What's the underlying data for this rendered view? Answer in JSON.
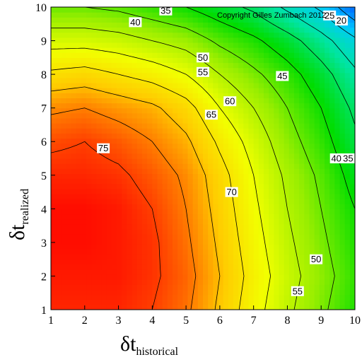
{
  "chart_data": {
    "type": "heatmap",
    "title": "",
    "xlabel": {
      "symbol": "δt",
      "subscript": "historical"
    },
    "ylabel": {
      "symbol": "δt",
      "subscript": "realized"
    },
    "xlim": [
      1,
      10
    ],
    "ylim": [
      1,
      10
    ],
    "x_ticks": [
      "1",
      "2",
      "3",
      "4",
      "5",
      "6",
      "7",
      "8",
      "9",
      "10"
    ],
    "y_ticks": [
      "1",
      "2",
      "3",
      "4",
      "5",
      "6",
      "7",
      "8",
      "9",
      "10"
    ],
    "copyright": "Copyright Gilles Zumbach 2012",
    "colormap": [
      "#ff0000",
      "#ff6600",
      "#ffcc00",
      "#f2ff00",
      "#99ee00",
      "#00dd00",
      "#00e5a0",
      "#00c8ff",
      "#0055ff"
    ],
    "value_range": [
      15,
      80
    ],
    "x": [
      1,
      2,
      3,
      4,
      5,
      6,
      7,
      8,
      9,
      10
    ],
    "y": [
      1,
      2,
      3,
      4,
      5,
      6,
      7,
      8,
      9,
      10
    ],
    "z": [
      [
        77,
        77,
        77,
        75,
        71,
        64,
        57,
        51,
        46,
        41
      ],
      [
        78,
        78,
        78,
        76,
        72,
        65,
        58,
        52,
        47,
        42
      ],
      [
        79,
        79,
        78,
        76,
        71,
        64,
        57,
        51,
        46,
        41
      ],
      [
        79,
        79,
        78,
        75,
        70,
        63,
        56,
        50,
        45,
        40
      ],
      [
        77,
        77,
        76,
        73,
        69,
        62,
        55,
        49,
        44,
        38
      ],
      [
        74,
        75,
        73,
        70,
        66,
        59,
        53,
        47,
        42,
        36
      ],
      [
        69,
        70,
        68,
        66,
        62,
        55,
        50,
        45,
        40,
        34
      ],
      [
        61,
        62,
        60,
        58,
        55,
        50,
        46,
        42,
        37,
        31
      ],
      [
        53,
        53,
        52,
        50,
        48,
        44,
        41,
        37,
        32,
        26
      ],
      [
        45,
        45,
        44,
        42,
        40,
        37,
        34,
        29,
        24,
        16
      ]
    ],
    "contour_levels": [
      20,
      25,
      30,
      35,
      40,
      45,
      50,
      55,
      60,
      65,
      70,
      75
    ],
    "contour_labels": [
      {
        "text": "35",
        "x": 4.4,
        "y": 9.9
      },
      {
        "text": "40",
        "x": 3.5,
        "y": 9.55
      },
      {
        "text": "50",
        "x": 5.5,
        "y": 8.5
      },
      {
        "text": "55",
        "x": 5.5,
        "y": 8.07
      },
      {
        "text": "45",
        "x": 7.85,
        "y": 7.95
      },
      {
        "text": "60",
        "x": 6.3,
        "y": 7.2
      },
      {
        "text": "65",
        "x": 5.75,
        "y": 6.8
      },
      {
        "text": "75",
        "x": 2.55,
        "y": 5.8
      },
      {
        "text": "70",
        "x": 6.35,
        "y": 4.5
      },
      {
        "text": "40",
        "x": 9.45,
        "y": 5.5
      },
      {
        "text": "35",
        "x": 9.8,
        "y": 5.5
      },
      {
        "text": "50",
        "x": 8.85,
        "y": 2.5
      },
      {
        "text": "55",
        "x": 8.3,
        "y": 1.55
      },
      {
        "text": "20",
        "x": 9.6,
        "y": 9.6
      },
      {
        "text": "25",
        "x": 9.25,
        "y": 9.75
      }
    ]
  }
}
